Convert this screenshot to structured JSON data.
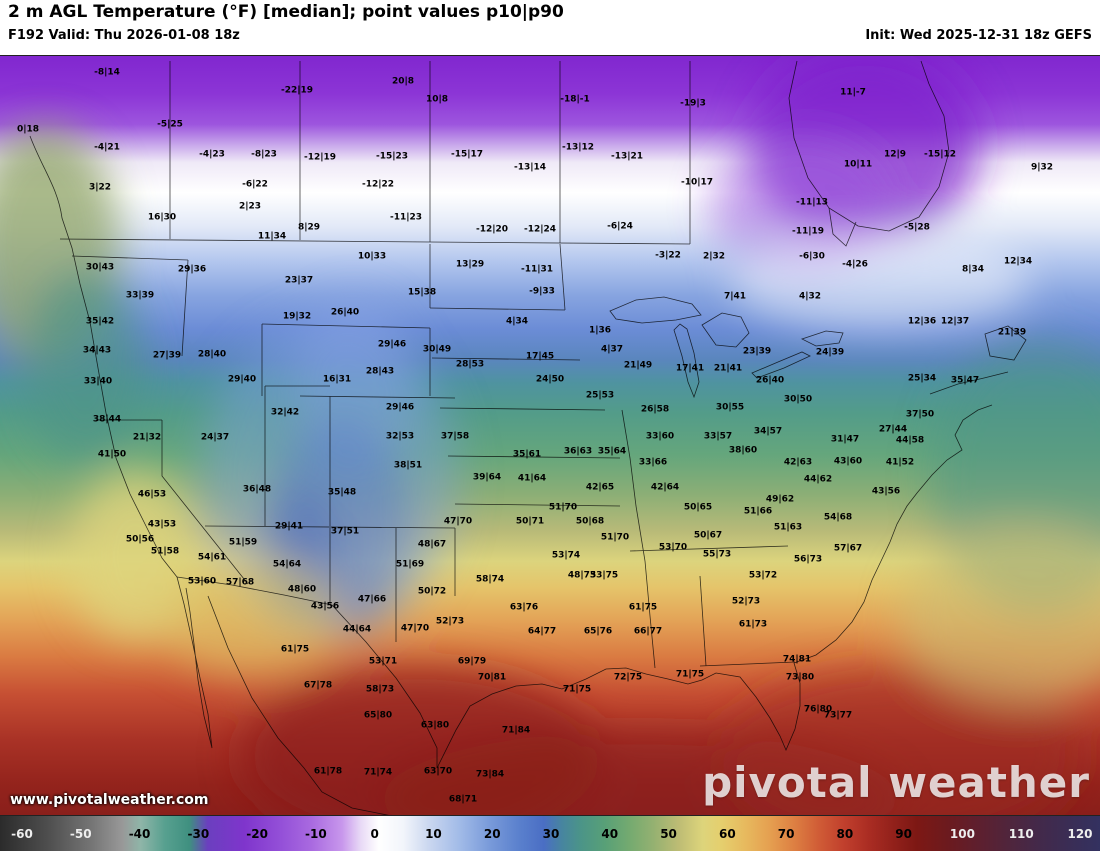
{
  "header": {
    "title": "2 m AGL Temperature (°F) [median]; point values p10|p90",
    "valid": "F192 Valid: Thu 2026-01-08 18z",
    "init": "Init: Wed 2025-12-31 18z GEFS"
  },
  "watermark": {
    "brand": "pivotal weather",
    "url": "www.pivotalweather.com"
  },
  "colorbar": {
    "unit": "°F",
    "min": -60,
    "max": 120,
    "ticks": [
      {
        "v": -60,
        "light": true
      },
      {
        "v": -50,
        "light": true
      },
      {
        "v": -40,
        "light": false
      },
      {
        "v": -30,
        "light": false
      },
      {
        "v": -20,
        "light": false
      },
      {
        "v": -10,
        "light": false
      },
      {
        "v": 0,
        "light": false
      },
      {
        "v": 10,
        "light": false
      },
      {
        "v": 20,
        "light": false
      },
      {
        "v": 30,
        "light": false
      },
      {
        "v": 40,
        "light": false
      },
      {
        "v": 50,
        "light": false
      },
      {
        "v": 60,
        "light": false
      },
      {
        "v": 70,
        "light": false
      },
      {
        "v": 80,
        "light": false
      },
      {
        "v": 90,
        "light": false
      },
      {
        "v": 100,
        "light": true
      },
      {
        "v": 110,
        "light": true
      },
      {
        "v": 120,
        "light": true
      }
    ],
    "stops": [
      {
        "v": -60,
        "c": "#2b2b2b"
      },
      {
        "v": -52,
        "c": "#4f4f4f"
      },
      {
        "v": -45,
        "c": "#757575"
      },
      {
        "v": -40,
        "c": "#989898"
      },
      {
        "v": -37,
        "c": "#8fb5a8"
      },
      {
        "v": -33,
        "c": "#57a08f"
      },
      {
        "v": -29,
        "c": "#3f9080"
      },
      {
        "v": -26,
        "c": "#6b3fbf"
      },
      {
        "v": -20,
        "c": "#7f35cc"
      },
      {
        "v": -14,
        "c": "#9450d8"
      },
      {
        "v": -9,
        "c": "#a96ae0"
      },
      {
        "v": -4,
        "c": "#c897ec"
      },
      {
        "v": -1,
        "c": "#e8d9f6"
      },
      {
        "v": 2,
        "c": "#ffffff"
      },
      {
        "v": 6,
        "c": "#f2f5fb"
      },
      {
        "v": 10,
        "c": "#ccd8f0"
      },
      {
        "v": 15,
        "c": "#a3bce8"
      },
      {
        "v": 20,
        "c": "#7a9bda"
      },
      {
        "v": 25,
        "c": "#5a80cd"
      },
      {
        "v": 29,
        "c": "#4a6ec4"
      },
      {
        "v": 32,
        "c": "#47859f"
      },
      {
        "v": 35,
        "c": "#4b9488"
      },
      {
        "v": 39,
        "c": "#58a077"
      },
      {
        "v": 43,
        "c": "#74aa70"
      },
      {
        "v": 47,
        "c": "#95b171"
      },
      {
        "v": 51,
        "c": "#bdbc74"
      },
      {
        "v": 55,
        "c": "#ddd47b"
      },
      {
        "v": 58,
        "c": "#e5cf6e"
      },
      {
        "v": 62,
        "c": "#e7b95e"
      },
      {
        "v": 66,
        "c": "#e59f50"
      },
      {
        "v": 70,
        "c": "#dd7f42"
      },
      {
        "v": 74,
        "c": "#d05c36"
      },
      {
        "v": 78,
        "c": "#c1402d"
      },
      {
        "v": 82,
        "c": "#ab2d23"
      },
      {
        "v": 86,
        "c": "#93211b"
      },
      {
        "v": 90,
        "c": "#7d1814"
      },
      {
        "v": 95,
        "c": "#6c1a1e"
      },
      {
        "v": 100,
        "c": "#5e1f2e"
      },
      {
        "v": 105,
        "c": "#50253c"
      },
      {
        "v": 110,
        "c": "#43294a"
      },
      {
        "v": 115,
        "c": "#3a2d55"
      },
      {
        "v": 120,
        "c": "#333160"
      }
    ]
  },
  "map": {
    "field": "2 m temperature median (°F)",
    "point_format": "p10|p90",
    "points": [
      [
        "-8|14",
        107,
        73
      ],
      [
        "-22|19",
        297,
        91
      ],
      [
        "20|8",
        403,
        82
      ],
      [
        "10|8",
        437,
        100
      ],
      [
        "-18|-1",
        575,
        100
      ],
      [
        "-19|3",
        693,
        104
      ],
      [
        "11|-7",
        853,
        93
      ],
      [
        "0|18",
        28,
        130
      ],
      [
        "-5|25",
        170,
        125
      ],
      [
        "-4|21",
        107,
        148
      ],
      [
        "-4|23",
        212,
        155
      ],
      [
        "-8|23",
        264,
        155
      ],
      [
        "-12|19",
        320,
        158
      ],
      [
        "-15|23",
        392,
        157
      ],
      [
        "-15|17",
        467,
        155
      ],
      [
        "-13|14",
        530,
        168
      ],
      [
        "-13|12",
        578,
        148
      ],
      [
        "-13|21",
        627,
        157
      ],
      [
        "10|11",
        858,
        165
      ],
      [
        "12|9",
        895,
        155
      ],
      [
        "-15|12",
        940,
        155
      ],
      [
        "9|32",
        1042,
        168
      ],
      [
        "3|22",
        100,
        188
      ],
      [
        "-6|22",
        255,
        185
      ],
      [
        "-12|22",
        378,
        185
      ],
      [
        "-10|17",
        697,
        183
      ],
      [
        "-11|13",
        812,
        203
      ],
      [
        "2|23",
        250,
        207
      ],
      [
        "16|30",
        162,
        218
      ],
      [
        "-11|23",
        406,
        218
      ],
      [
        "8|29",
        309,
        228
      ],
      [
        "-12|20",
        492,
        230
      ],
      [
        "-12|24",
        540,
        230
      ],
      [
        "-6|24",
        620,
        227
      ],
      [
        "-5|28",
        917,
        228
      ],
      [
        "11|34",
        272,
        237
      ],
      [
        "-11|19",
        808,
        232
      ],
      [
        "-3|22",
        668,
        256
      ],
      [
        "2|32",
        714,
        257
      ],
      [
        "-6|30",
        812,
        257
      ],
      [
        "-4|26",
        855,
        265
      ],
      [
        "12|34",
        1018,
        262
      ],
      [
        "8|34",
        973,
        270
      ],
      [
        "30|43",
        100,
        268
      ],
      [
        "29|36",
        192,
        270
      ],
      [
        "10|33",
        372,
        257
      ],
      [
        "13|29",
        470,
        265
      ],
      [
        "-11|31",
        537,
        270
      ],
      [
        "-9|33",
        542,
        292
      ],
      [
        "23|37",
        299,
        281
      ],
      [
        "33|39",
        140,
        296
      ],
      [
        "19|32",
        297,
        317
      ],
      [
        "26|40",
        345,
        313
      ],
      [
        "15|38",
        422,
        293
      ],
      [
        "4|34",
        517,
        322
      ],
      [
        "1|36",
        600,
        331
      ],
      [
        "7|41",
        735,
        297
      ],
      [
        "4|32",
        810,
        297
      ],
      [
        "12|36",
        922,
        322
      ],
      [
        "12|37",
        955,
        322
      ],
      [
        "21|39",
        1012,
        333
      ],
      [
        "35|42",
        100,
        322
      ],
      [
        "4|37",
        612,
        350
      ],
      [
        "17|45",
        540,
        357
      ],
      [
        "23|39",
        757,
        352
      ],
      [
        "24|39",
        830,
        353
      ],
      [
        "27|39",
        167,
        356
      ],
      [
        "28|40",
        212,
        355
      ],
      [
        "34|43",
        97,
        351
      ],
      [
        "29|46",
        392,
        345
      ],
      [
        "30|49",
        437,
        350
      ],
      [
        "16|31",
        337,
        380
      ],
      [
        "28|43",
        380,
        372
      ],
      [
        "28|53",
        470,
        365
      ],
      [
        "21|49",
        638,
        366
      ],
      [
        "17|41",
        690,
        369
      ],
      [
        "21|41",
        728,
        369
      ],
      [
        "33|40",
        98,
        382
      ],
      [
        "29|40",
        242,
        380
      ],
      [
        "24|50",
        550,
        380
      ],
      [
        "26|40",
        770,
        381
      ],
      [
        "25|34",
        922,
        379
      ],
      [
        "35|47",
        965,
        381
      ],
      [
        "25|53",
        600,
        396
      ],
      [
        "26|58",
        655,
        410
      ],
      [
        "30|55",
        730,
        408
      ],
      [
        "30|50",
        798,
        400
      ],
      [
        "31|47",
        845,
        440
      ],
      [
        "27|44",
        893,
        430
      ],
      [
        "37|50",
        920,
        415
      ],
      [
        "38|44",
        107,
        420
      ],
      [
        "32|42",
        285,
        413
      ],
      [
        "29|46",
        400,
        408
      ],
      [
        "32|53",
        400,
        437
      ],
      [
        "37|58",
        455,
        437
      ],
      [
        "21|32",
        147,
        438
      ],
      [
        "24|37",
        215,
        438
      ],
      [
        "33|60",
        660,
        437
      ],
      [
        "33|57",
        718,
        437
      ],
      [
        "34|57",
        768,
        432
      ],
      [
        "44|58",
        910,
        441
      ],
      [
        "35|61",
        527,
        455
      ],
      [
        "36|63",
        578,
        452
      ],
      [
        "35|64",
        612,
        452
      ],
      [
        "33|66",
        653,
        463
      ],
      [
        "38|60",
        743,
        451
      ],
      [
        "42|63",
        798,
        463
      ],
      [
        "43|60",
        848,
        462
      ],
      [
        "41|52",
        900,
        463
      ],
      [
        "41|50",
        112,
        455
      ],
      [
        "38|51",
        408,
        466
      ],
      [
        "39|64",
        487,
        478
      ],
      [
        "41|64",
        532,
        479
      ],
      [
        "42|65",
        600,
        488
      ],
      [
        "42|64",
        665,
        488
      ],
      [
        "44|62",
        818,
        480
      ],
      [
        "43|56",
        886,
        492
      ],
      [
        "46|53",
        152,
        495
      ],
      [
        "36|48",
        257,
        490
      ],
      [
        "35|48",
        342,
        493
      ],
      [
        "49|62",
        780,
        500
      ],
      [
        "50|65",
        698,
        508
      ],
      [
        "51|70",
        563,
        508
      ],
      [
        "51|66",
        758,
        512
      ],
      [
        "54|68",
        838,
        518
      ],
      [
        "50|71",
        530,
        522
      ],
      [
        "50|68",
        590,
        522
      ],
      [
        "43|53",
        162,
        525
      ],
      [
        "29|41",
        289,
        527
      ],
      [
        "37|51",
        345,
        532
      ],
      [
        "51|63",
        788,
        528
      ],
      [
        "50|56",
        140,
        540
      ],
      [
        "51|59",
        243,
        543
      ],
      [
        "47|70",
        458,
        522
      ],
      [
        "48|67",
        432,
        545
      ],
      [
        "51|70",
        615,
        538
      ],
      [
        "53|70",
        673,
        548
      ],
      [
        "50|67",
        708,
        536
      ],
      [
        "57|67",
        848,
        549
      ],
      [
        "51|58",
        165,
        552
      ],
      [
        "54|61",
        212,
        558
      ],
      [
        "54|64",
        287,
        565
      ],
      [
        "51|69",
        410,
        565
      ],
      [
        "53|74",
        566,
        556
      ],
      [
        "55|73",
        717,
        555
      ],
      [
        "56|73",
        808,
        560
      ],
      [
        "53|60",
        202,
        582
      ],
      [
        "57|68",
        240,
        583
      ],
      [
        "58|74",
        490,
        580
      ],
      [
        "48|73",
        582,
        576
      ],
      [
        "53|75",
        604,
        576
      ],
      [
        "53|72",
        763,
        576
      ],
      [
        "48|60",
        302,
        590
      ],
      [
        "50|72",
        432,
        592
      ],
      [
        "52|73",
        746,
        602
      ],
      [
        "43|56",
        325,
        607
      ],
      [
        "47|66",
        372,
        600
      ],
      [
        "63|76",
        524,
        608
      ],
      [
        "61|75",
        643,
        608
      ],
      [
        "44|64",
        357,
        630
      ],
      [
        "64|77",
        542,
        632
      ],
      [
        "65|76",
        598,
        632
      ],
      [
        "66|77",
        648,
        632
      ],
      [
        "61|73",
        753,
        625
      ],
      [
        "47|70",
        415,
        629
      ],
      [
        "52|73",
        450,
        622
      ],
      [
        "61|75",
        295,
        650
      ],
      [
        "53|71",
        383,
        662
      ],
      [
        "69|79",
        472,
        662
      ],
      [
        "72|75",
        628,
        678
      ],
      [
        "71|75",
        690,
        675
      ],
      [
        "74|81",
        797,
        660
      ],
      [
        "67|78",
        318,
        686
      ],
      [
        "58|73",
        380,
        690
      ],
      [
        "70|81",
        492,
        678
      ],
      [
        "71|75",
        577,
        690
      ],
      [
        "73|80",
        800,
        678
      ],
      [
        "76|80",
        818,
        710
      ],
      [
        "73|77",
        838,
        716
      ],
      [
        "65|80",
        378,
        716
      ],
      [
        "63|80",
        435,
        726
      ],
      [
        "71|84",
        516,
        731
      ],
      [
        "61|78",
        328,
        772
      ],
      [
        "71|74",
        378,
        773
      ],
      [
        "63|70",
        438,
        772
      ],
      [
        "73|84",
        490,
        775
      ],
      [
        "68|71",
        463,
        800
      ]
    ]
  }
}
